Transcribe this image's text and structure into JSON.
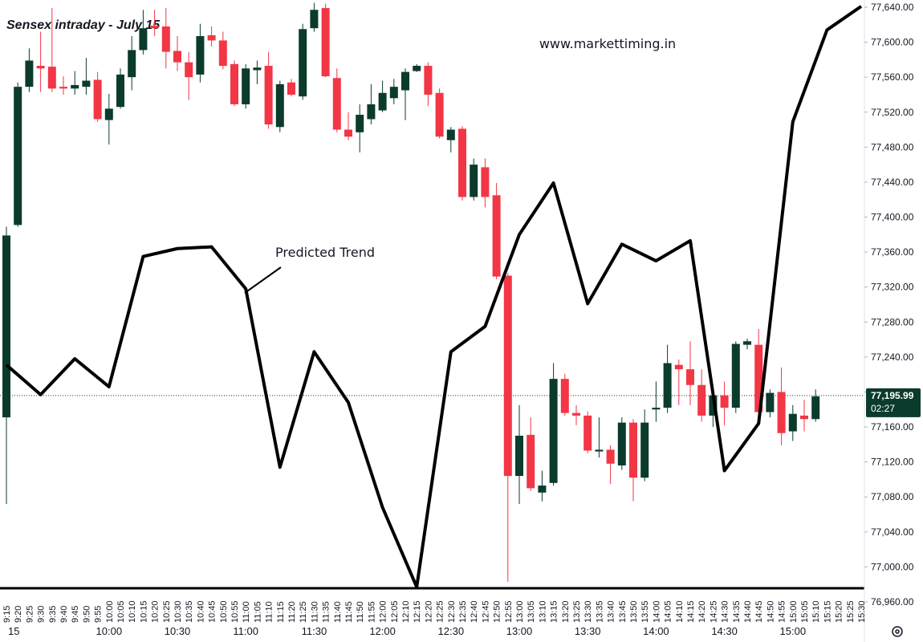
{
  "chart_data": {
    "type": "candlestick",
    "title": "Sensex intraday - July 15",
    "watermark": "www.markettiming.in",
    "up_color": "#0b3b2c",
    "down_color": "#f23645",
    "categories": [
      "9:15",
      "9:20",
      "9:25",
      "9:30",
      "9:35",
      "9:40",
      "9:45",
      "9:50",
      "9:55",
      "10:00",
      "10:05",
      "10:10",
      "10:15",
      "10:20",
      "10:25",
      "10:30",
      "10:35",
      "10:40",
      "10:45",
      "10:50",
      "10:55",
      "11:00",
      "11:05",
      "11:10",
      "11:15",
      "11:20",
      "11:25",
      "11:30",
      "11:35",
      "11:40",
      "11:45",
      "11:50",
      "11:55",
      "12:00",
      "12:05",
      "12:10",
      "12:15",
      "12:20",
      "12:25",
      "12:30",
      "12:35",
      "12:40",
      "12:45",
      "12:50",
      "12:55",
      "13:00",
      "13:05",
      "13:10",
      "13:15",
      "13:20",
      "13:25",
      "13:30",
      "13:35",
      "13:40",
      "13:45",
      "13:50",
      "13:55",
      "14:00",
      "14:05",
      "14:10",
      "14:15",
      "14:20",
      "14:25",
      "14:30",
      "14:35",
      "14:40",
      "14:45",
      "14:50",
      "14:55",
      "15:00",
      "15:05",
      "15:10"
    ],
    "extra_x_labels": [
      "15:15",
      "15:20",
      "15:25",
      "15:30"
    ],
    "major_x_labels": [
      "15",
      "10:00",
      "10:30",
      "11:00",
      "11:30",
      "12:00",
      "12:30",
      "13:00",
      "13:30",
      "14:00",
      "14:30",
      "15:00"
    ],
    "open": [
      77171,
      77391,
      77549,
      77573,
      77572,
      77549,
      77547,
      77549,
      77557,
      77511,
      77526,
      77560,
      77591,
      77619,
      77618,
      77590,
      77577,
      77563,
      77608,
      77602,
      77575,
      77529,
      77568,
      77573,
      77503,
      77554,
      77538,
      77616,
      77639,
      77559,
      77500,
      77497,
      77512,
      77522,
      77536,
      77545,
      77567,
      77573,
      77542,
      77488,
      77501,
      77423,
      77457,
      77425,
      77333,
      77104,
      77151,
      77085,
      77096,
      77215,
      77176,
      77173,
      77132,
      77134,
      77116,
      77165,
      77102,
      77180,
      77182,
      77231,
      77226,
      77208,
      77173,
      77196,
      77182,
      77254,
      77254,
      77177,
      77200,
      77155,
      77173,
      77169
    ],
    "high": [
      77389,
      77554,
      77593,
      77612,
      77639,
      77561,
      77567,
      77582,
      77566,
      77541,
      77570,
      77607,
      77637,
      77637,
      77639,
      77607,
      77589,
      77621,
      77618,
      77612,
      77579,
      77575,
      77579,
      77589,
      77556,
      77558,
      77621,
      77645,
      77644,
      77570,
      77520,
      77529,
      77552,
      77556,
      77558,
      77570,
      77575,
      77577,
      77547,
      77503,
      77504,
      77467,
      77467,
      77439,
      77336,
      77185,
      77171,
      77110,
      77233,
      77221,
      77185,
      77178,
      77171,
      77139,
      77171,
      77169,
      77180,
      77212,
      77254,
      77237,
      77258,
      77226,
      77208,
      77212,
      77258,
      77261,
      77272,
      77203,
      77228,
      77185,
      77191,
      77203
    ],
    "low": [
      77072,
      77389,
      77543,
      77543,
      77543,
      77540,
      77540,
      77540,
      77509,
      77483,
      77524,
      77545,
      77586,
      77607,
      77570,
      77567,
      77534,
      77554,
      77595,
      77569,
      77527,
      77524,
      77552,
      77501,
      77497,
      77538,
      77534,
      77612,
      77560,
      77497,
      77488,
      77474,
      77506,
      77520,
      77529,
      77511,
      77566,
      77527,
      77490,
      77474,
      77419,
      77419,
      77411,
      77329,
      76983,
      77072,
      77087,
      77075,
      77093,
      77173,
      77162,
      77130,
      77125,
      77095,
      77111,
      77075,
      77098,
      77166,
      77176,
      77185,
      77185,
      77166,
      77160,
      77162,
      77176,
      77249,
      77176,
      77171,
      77139,
      77144,
      77155,
      77166
    ],
    "close": [
      77379,
      77549,
      77579,
      77570,
      77547,
      77547,
      77551,
      77556,
      77512,
      77524,
      77563,
      77591,
      77616,
      77616,
      77589,
      77577,
      77560,
      77607,
      77602,
      77573,
      77529,
      77570,
      77571,
      77506,
      77552,
      77540,
      77615,
      77637,
      77561,
      77500,
      77492,
      77517,
      77529,
      77542,
      77549,
      77566,
      77573,
      77540,
      77492,
      77500,
      77423,
      77460,
      77423,
      77332,
      77104,
      77150,
      77090,
      77093,
      77215,
      77176,
      77173,
      77133,
      77134,
      77118,
      77165,
      77102,
      77165,
      77182,
      77233,
      77226,
      77208,
      77173,
      77196,
      77182,
      77255,
      77258,
      77177,
      77199,
      77153,
      77175,
      77169,
      77195
    ],
    "trend": {
      "annotation": "Predicted Trend",
      "color": "#000000",
      "x": [
        "9:15",
        "9:30",
        "9:45",
        "10:00",
        "10:15",
        "10:30",
        "10:45",
        "11:00",
        "11:15",
        "11:30",
        "11:45",
        "12:00",
        "12:15",
        "12:30",
        "12:45",
        "13:00",
        "13:15",
        "13:30",
        "13:45",
        "14:00",
        "14:15",
        "14:30",
        "14:45",
        "15:00",
        "15:15",
        "15:30"
      ],
      "values": [
        77231,
        77197,
        77238,
        77206,
        77355,
        77364,
        77366,
        77318,
        77114,
        77246,
        77188,
        77068,
        76977,
        77246,
        77275,
        77380,
        77439,
        77301,
        77369,
        77350,
        77373,
        77110,
        77164,
        77509,
        77614,
        77641
      ]
    },
    "last_price": {
      "value": 77195.99,
      "label": "77,195.99"
    },
    "countdown": "02:27",
    "ylim": [
      76960,
      77640
    ],
    "yticks": [
      {
        "value": 76960,
        "label": "76,960.00"
      },
      {
        "value": 77000,
        "label": "77,000.00"
      },
      {
        "value": 77040,
        "label": "77,040.00"
      },
      {
        "value": 77080,
        "label": "77,080.00"
      },
      {
        "value": 77120,
        "label": "77,120.00"
      },
      {
        "value": 77160,
        "label": "77,160.00"
      },
      {
        "value": 77200,
        "label": "77,200.00"
      },
      {
        "value": 77240,
        "label": "77,240.00"
      },
      {
        "value": 77280,
        "label": "77,280.00"
      },
      {
        "value": 77320,
        "label": "77,320.00"
      },
      {
        "value": 77360,
        "label": "77,360.00"
      },
      {
        "value": 77400,
        "label": "77,400.00"
      },
      {
        "value": 77440,
        "label": "77,440.00"
      },
      {
        "value": 77480,
        "label": "77,480.00"
      },
      {
        "value": 77520,
        "label": "77,520.00"
      },
      {
        "value": 77560,
        "label": "77,560.00"
      },
      {
        "value": 77600,
        "label": "77,600.00"
      },
      {
        "value": 77640,
        "label": "77,640.00"
      }
    ]
  }
}
